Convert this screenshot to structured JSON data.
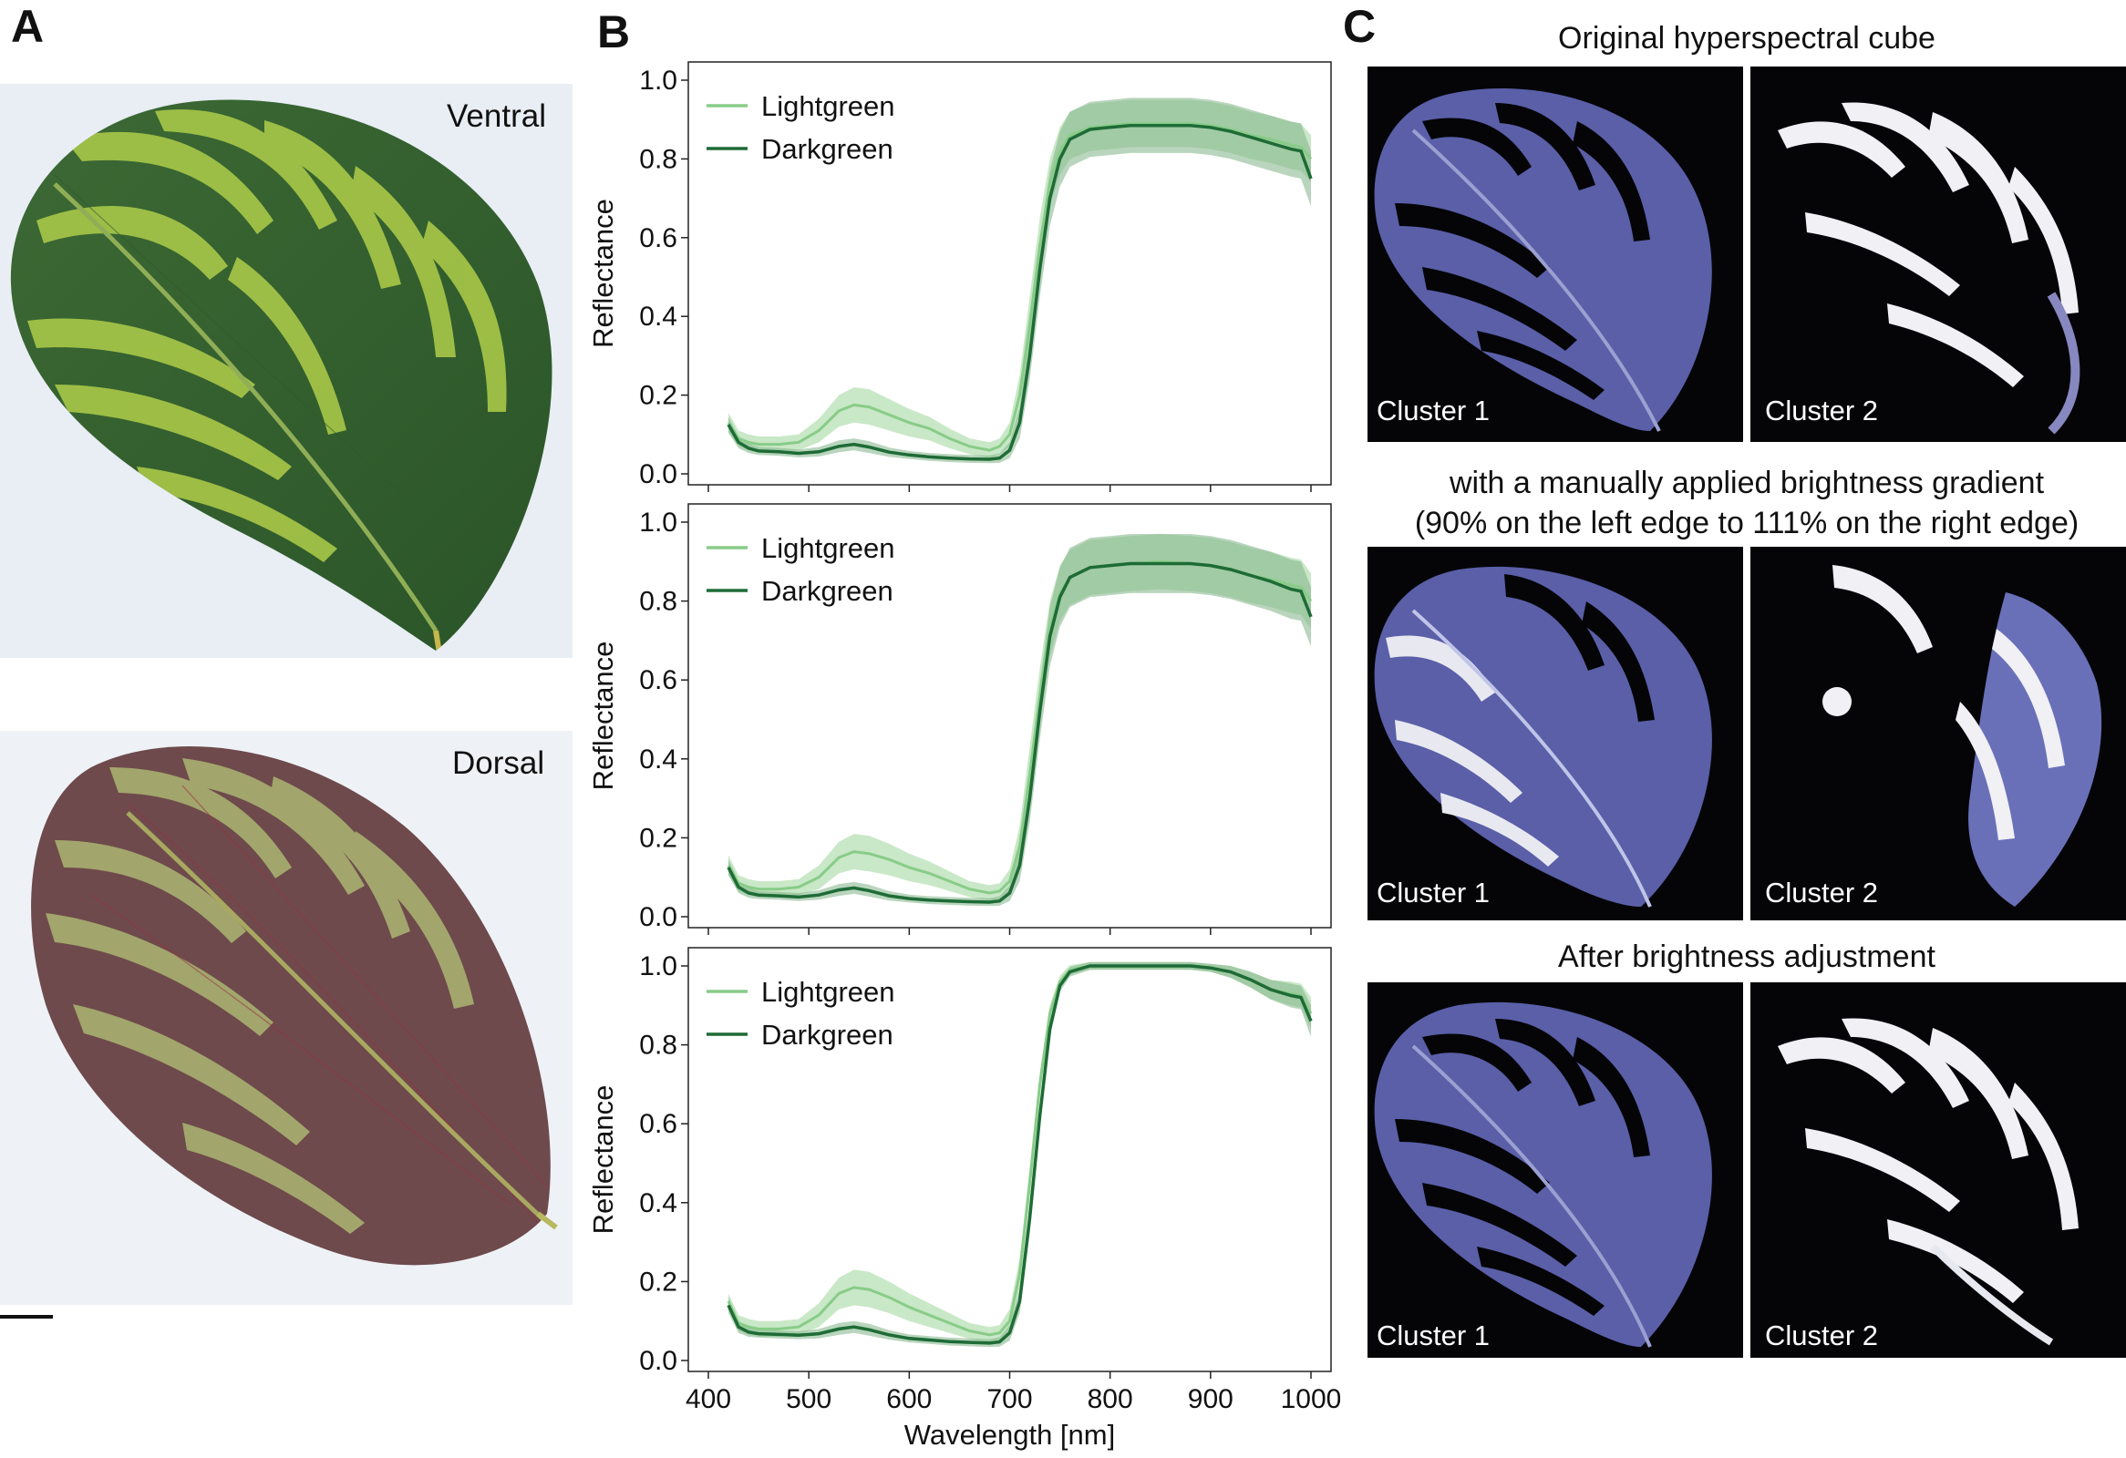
{
  "panels": {
    "a": {
      "letter": "A",
      "ventral_label": "Ventral",
      "dorsal_label": "Dorsal"
    },
    "b": {
      "letter": "B"
    },
    "c": {
      "letter": "C",
      "rows": [
        {
          "title_lines": [
            "Original hyperspectral cube"
          ],
          "cluster_labels": [
            "Cluster 1",
            "Cluster 2"
          ]
        },
        {
          "title_lines": [
            "with a manually applied brightness gradient",
            "(90% on the left edge to 111% on the right edge)"
          ],
          "cluster_labels": [
            "Cluster 1",
            "Cluster 2"
          ]
        },
        {
          "title_lines": [
            "After brightness adjustment"
          ],
          "cluster_labels": [
            "Cluster 1",
            "Cluster 2"
          ]
        }
      ]
    }
  },
  "colors": {
    "lightgreen": "#88cc88",
    "darkgreen": "#1e6b36",
    "lightgreen_band": "#b7e0b4",
    "darkgreen_band": "#7fb286",
    "leaf_ventral_dark": "#2e5a2b",
    "leaf_ventral_light": "#a8c94a",
    "leaf_dorsal": "#6e4a4c",
    "leaf_dorsal_light": "#a8b070",
    "cluster_bg": "#050508",
    "cluster_fill": "#5a5fa8"
  },
  "chart_data": [
    {
      "type": "line",
      "title": "",
      "xlabel": "",
      "ylabel": "Reflectance",
      "xlim": [
        400,
        1000
      ],
      "ylim": [
        0.0,
        1.0
      ],
      "x_ticks": [
        400,
        500,
        600,
        700,
        800,
        900,
        1000
      ],
      "y_ticks": [
        "0.0",
        "0.2",
        "0.4",
        "0.6",
        "0.8",
        "1.0"
      ],
      "show_x_tick_labels": false,
      "legend": "top-left",
      "x": [
        420,
        430,
        440,
        450,
        470,
        490,
        510,
        530,
        545,
        560,
        580,
        600,
        620,
        640,
        660,
        680,
        690,
        700,
        710,
        720,
        730,
        740,
        750,
        760,
        780,
        800,
        820,
        850,
        880,
        900,
        920,
        940,
        960,
        980,
        990,
        1000
      ],
      "series": [
        {
          "name": "Lightgreen",
          "values": [
            0.13,
            0.09,
            0.08,
            0.075,
            0.075,
            0.08,
            0.11,
            0.16,
            0.175,
            0.17,
            0.15,
            0.13,
            0.115,
            0.09,
            0.07,
            0.06,
            0.07,
            0.1,
            0.2,
            0.38,
            0.58,
            0.74,
            0.82,
            0.86,
            0.88,
            0.885,
            0.89,
            0.89,
            0.89,
            0.885,
            0.875,
            0.86,
            0.85,
            0.835,
            0.83,
            0.8
          ],
          "band": [
            0.025,
            0.02,
            0.02,
            0.02,
            0.02,
            0.02,
            0.03,
            0.04,
            0.045,
            0.045,
            0.04,
            0.035,
            0.03,
            0.025,
            0.02,
            0.02,
            0.02,
            0.03,
            0.05,
            0.07,
            0.07,
            0.06,
            0.06,
            0.06,
            0.06,
            0.06,
            0.06,
            0.06,
            0.06,
            0.06,
            0.06,
            0.06,
            0.06,
            0.06,
            0.06,
            0.06
          ]
        },
        {
          "name": "Darkgreen",
          "values": [
            0.125,
            0.08,
            0.065,
            0.058,
            0.056,
            0.052,
            0.056,
            0.07,
            0.075,
            0.068,
            0.055,
            0.048,
            0.043,
            0.04,
            0.038,
            0.037,
            0.04,
            0.06,
            0.13,
            0.3,
            0.52,
            0.7,
            0.8,
            0.85,
            0.875,
            0.88,
            0.885,
            0.885,
            0.885,
            0.88,
            0.87,
            0.855,
            0.84,
            0.825,
            0.82,
            0.75
          ],
          "band": [
            0.02,
            0.015,
            0.012,
            0.01,
            0.01,
            0.01,
            0.012,
            0.015,
            0.015,
            0.015,
            0.012,
            0.01,
            0.01,
            0.01,
            0.01,
            0.01,
            0.012,
            0.02,
            0.04,
            0.06,
            0.07,
            0.07,
            0.07,
            0.07,
            0.07,
            0.07,
            0.07,
            0.07,
            0.07,
            0.07,
            0.07,
            0.07,
            0.07,
            0.07,
            0.07,
            0.07
          ]
        }
      ]
    },
    {
      "type": "line",
      "title": "",
      "xlabel": "",
      "ylabel": "Reflectance",
      "xlim": [
        400,
        1000
      ],
      "ylim": [
        0.0,
        1.0
      ],
      "x_ticks": [
        400,
        500,
        600,
        700,
        800,
        900,
        1000
      ],
      "y_ticks": [
        "0.0",
        "0.2",
        "0.4",
        "0.6",
        "0.8",
        "1.0"
      ],
      "show_x_tick_labels": false,
      "legend": "top-left",
      "x": [
        420,
        430,
        440,
        450,
        470,
        490,
        510,
        530,
        545,
        560,
        580,
        600,
        620,
        640,
        660,
        680,
        690,
        700,
        710,
        720,
        730,
        740,
        750,
        760,
        780,
        800,
        820,
        850,
        880,
        900,
        920,
        940,
        960,
        980,
        990,
        1000
      ],
      "series": [
        {
          "name": "Lightgreen",
          "values": [
            0.13,
            0.085,
            0.075,
            0.07,
            0.07,
            0.075,
            0.1,
            0.15,
            0.165,
            0.16,
            0.145,
            0.125,
            0.11,
            0.09,
            0.07,
            0.06,
            0.065,
            0.09,
            0.18,
            0.36,
            0.56,
            0.73,
            0.82,
            0.86,
            0.885,
            0.89,
            0.895,
            0.9,
            0.895,
            0.89,
            0.88,
            0.865,
            0.855,
            0.84,
            0.835,
            0.8
          ],
          "band": [
            0.025,
            0.02,
            0.02,
            0.02,
            0.02,
            0.02,
            0.03,
            0.04,
            0.045,
            0.045,
            0.04,
            0.035,
            0.03,
            0.025,
            0.02,
            0.02,
            0.02,
            0.03,
            0.05,
            0.07,
            0.07,
            0.07,
            0.07,
            0.07,
            0.07,
            0.07,
            0.07,
            0.07,
            0.07,
            0.07,
            0.07,
            0.07,
            0.07,
            0.07,
            0.07,
            0.07
          ]
        },
        {
          "name": "Darkgreen",
          "values": [
            0.125,
            0.075,
            0.06,
            0.055,
            0.053,
            0.05,
            0.055,
            0.068,
            0.073,
            0.066,
            0.053,
            0.046,
            0.042,
            0.04,
            0.038,
            0.037,
            0.04,
            0.06,
            0.13,
            0.3,
            0.52,
            0.71,
            0.81,
            0.86,
            0.885,
            0.89,
            0.895,
            0.895,
            0.895,
            0.89,
            0.88,
            0.865,
            0.85,
            0.83,
            0.825,
            0.76
          ],
          "band": [
            0.02,
            0.015,
            0.012,
            0.01,
            0.01,
            0.01,
            0.012,
            0.015,
            0.015,
            0.015,
            0.012,
            0.01,
            0.01,
            0.01,
            0.01,
            0.01,
            0.012,
            0.02,
            0.04,
            0.06,
            0.07,
            0.075,
            0.075,
            0.075,
            0.075,
            0.075,
            0.075,
            0.075,
            0.075,
            0.075,
            0.075,
            0.075,
            0.075,
            0.075,
            0.075,
            0.075
          ]
        }
      ]
    },
    {
      "type": "line",
      "title": "",
      "xlabel": "Wavelength [nm]",
      "ylabel": "Reflectance",
      "xlim": [
        400,
        1000
      ],
      "ylim": [
        0.0,
        1.0
      ],
      "x_ticks": [
        400,
        500,
        600,
        700,
        800,
        900,
        1000
      ],
      "y_ticks": [
        "0.0",
        "0.2",
        "0.4",
        "0.6",
        "0.8",
        "1.0"
      ],
      "show_x_tick_labels": true,
      "legend": "top-left",
      "x": [
        420,
        430,
        440,
        450,
        470,
        490,
        510,
        530,
        545,
        560,
        580,
        600,
        620,
        640,
        660,
        680,
        690,
        700,
        710,
        720,
        730,
        740,
        750,
        760,
        780,
        800,
        820,
        850,
        880,
        900,
        920,
        940,
        960,
        980,
        990,
        1000
      ],
      "series": [
        {
          "name": "Lightgreen",
          "values": [
            0.15,
            0.095,
            0.085,
            0.08,
            0.08,
            0.085,
            0.115,
            0.17,
            0.185,
            0.18,
            0.16,
            0.135,
            0.115,
            0.095,
            0.075,
            0.065,
            0.07,
            0.1,
            0.22,
            0.45,
            0.7,
            0.88,
            0.96,
            0.99,
            1.0,
            1.0,
            1.0,
            1.0,
            1.0,
            0.995,
            0.985,
            0.965,
            0.94,
            0.93,
            0.925,
            0.88
          ],
          "band": [
            0.02,
            0.02,
            0.02,
            0.02,
            0.02,
            0.02,
            0.03,
            0.04,
            0.045,
            0.045,
            0.04,
            0.035,
            0.03,
            0.025,
            0.02,
            0.02,
            0.02,
            0.03,
            0.04,
            0.04,
            0.03,
            0.02,
            0.015,
            0.012,
            0.01,
            0.01,
            0.01,
            0.01,
            0.01,
            0.01,
            0.015,
            0.02,
            0.025,
            0.03,
            0.03,
            0.04
          ]
        },
        {
          "name": "Darkgreen",
          "values": [
            0.14,
            0.085,
            0.072,
            0.068,
            0.066,
            0.064,
            0.068,
            0.08,
            0.085,
            0.078,
            0.065,
            0.056,
            0.052,
            0.048,
            0.046,
            0.044,
            0.047,
            0.07,
            0.15,
            0.36,
            0.62,
            0.84,
            0.95,
            0.985,
            1.0,
            1.0,
            1.0,
            1.0,
            1.0,
            0.995,
            0.985,
            0.965,
            0.94,
            0.925,
            0.92,
            0.86
          ],
          "band": [
            0.02,
            0.015,
            0.012,
            0.01,
            0.01,
            0.01,
            0.012,
            0.015,
            0.015,
            0.015,
            0.012,
            0.01,
            0.01,
            0.01,
            0.01,
            0.01,
            0.012,
            0.02,
            0.03,
            0.04,
            0.03,
            0.02,
            0.015,
            0.012,
            0.01,
            0.01,
            0.01,
            0.01,
            0.01,
            0.01,
            0.015,
            0.02,
            0.025,
            0.03,
            0.03,
            0.04
          ]
        }
      ]
    }
  ]
}
